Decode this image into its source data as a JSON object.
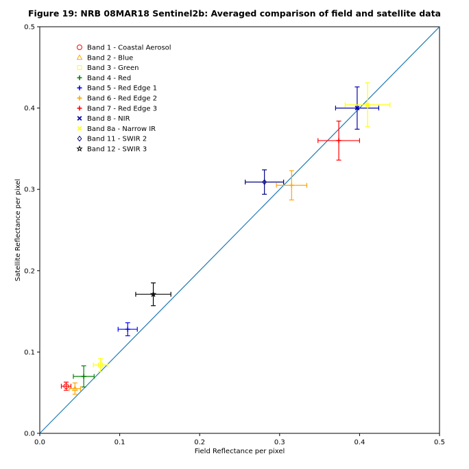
{
  "chart_data": {
    "type": "scatter",
    "title": "Figure 19: NRB 08MAR18  Sentinel2b: Averaged comparison of field and satellite data",
    "xlabel": "Field Reflectance per pixel",
    "ylabel": "Satellite Reflectance per pixel",
    "xlim": [
      0.0,
      0.5
    ],
    "ylim": [
      0.0,
      0.5
    ],
    "xticks": [
      "0.0",
      "0.1",
      "0.2",
      "0.3",
      "0.4",
      "0.5"
    ],
    "yticks": [
      "0.0",
      "0.1",
      "0.2",
      "0.3",
      "0.4",
      "0.5"
    ],
    "grid": false,
    "legend_position": "upper-left",
    "reference_line": {
      "x": [
        0.0,
        0.5
      ],
      "y": [
        0.0,
        0.5
      ],
      "color": "#1f77b4"
    },
    "series": [
      {
        "name": "Band 1 - Coastal Aerosol",
        "marker": "circle",
        "color": "#ff0000",
        "x": 0.033,
        "y": 0.058,
        "xerr": 0.006,
        "yerr": 0.005
      },
      {
        "name": "Band 2 - Blue",
        "marker": "triangle",
        "color": "#ffa500",
        "x": 0.044,
        "y": 0.055,
        "xerr": 0.007,
        "yerr": 0.007
      },
      {
        "name": "Band 3 - Green",
        "marker": "square",
        "color": "#ffff00",
        "x": 0.076,
        "y": 0.084,
        "xerr": 0.009,
        "yerr": 0.008
      },
      {
        "name": "Band 4 - Red",
        "marker": "plus",
        "color": "#008000",
        "x": 0.055,
        "y": 0.07,
        "xerr": 0.013,
        "yerr": 0.013
      },
      {
        "name": "Band 5 - Red Edge 1",
        "marker": "plus",
        "color": "#0000ff",
        "x": 0.11,
        "y": 0.128,
        "xerr": 0.012,
        "yerr": 0.008
      },
      {
        "name": "Band 6 - Red Edge 2",
        "marker": "plus",
        "color": "#ffa500",
        "x": 0.315,
        "y": 0.305,
        "xerr": 0.019,
        "yerr": 0.018
      },
      {
        "name": "Band 7 - Red Edge 3",
        "marker": "plus",
        "color": "#ff0000",
        "x": 0.374,
        "y": 0.36,
        "xerr": 0.026,
        "yerr": 0.024
      },
      {
        "name": "Band 8 - NIR",
        "marker": "x",
        "color": "#0000aa",
        "x": 0.397,
        "y": 0.4,
        "xerr": 0.027,
        "yerr": 0.026
      },
      {
        "name": "Band 8a - Narrow IR",
        "marker": "x",
        "color": "#ffff00",
        "x": 0.41,
        "y": 0.404,
        "xerr": 0.028,
        "yerr": 0.027
      },
      {
        "name": "Band 11 - SWIR 2",
        "marker": "diamond",
        "color": "#000080",
        "x": 0.281,
        "y": 0.309,
        "xerr": 0.024,
        "yerr": 0.015
      },
      {
        "name": "Band 12 - SWIR 3",
        "marker": "star",
        "color": "#000000",
        "x": 0.142,
        "y": 0.171,
        "xerr": 0.022,
        "yerr": 0.014
      }
    ]
  }
}
